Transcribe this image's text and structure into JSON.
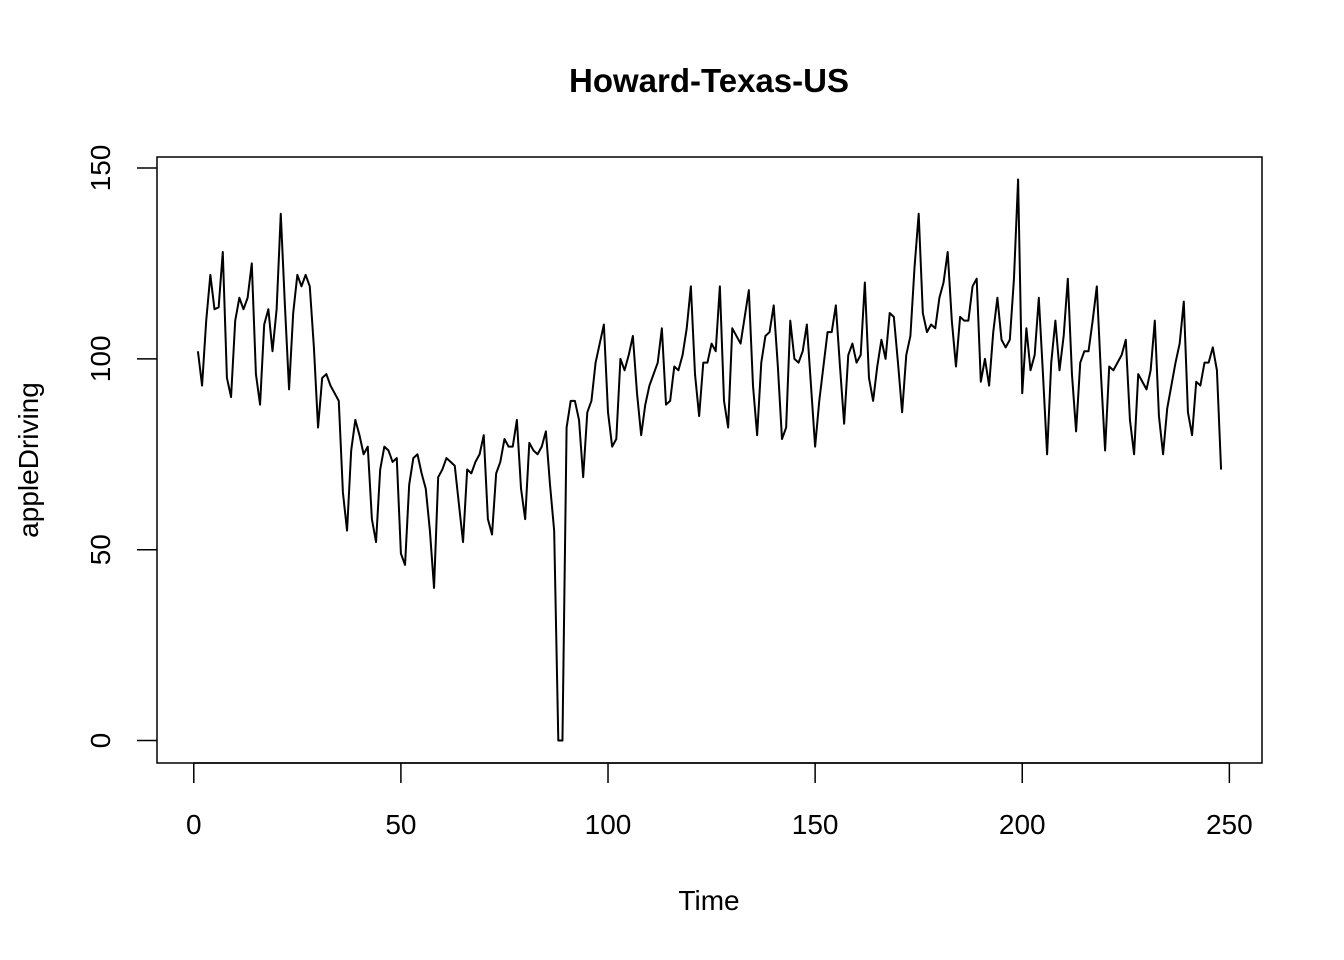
{
  "chart_data": {
    "type": "line",
    "title": "Howard-Texas-US",
    "x_label": "Time",
    "y_label": "appleDriving",
    "color": "#000000",
    "x": [
      1,
      2,
      3,
      4,
      5,
      6,
      7,
      8,
      9,
      10,
      11,
      12,
      13,
      14,
      15,
      16,
      17,
      18,
      19,
      20,
      21,
      22,
      23,
      24,
      25,
      26,
      27,
      28,
      29,
      30,
      31,
      32,
      33,
      34,
      35,
      36,
      37,
      38,
      39,
      40,
      41,
      42,
      43,
      44,
      45,
      46,
      47,
      48,
      49,
      50,
      51,
      52,
      53,
      54,
      55,
      56,
      57,
      58,
      59,
      60,
      61,
      62,
      63,
      64,
      65,
      66,
      67,
      68,
      69,
      70,
      71,
      72,
      73,
      74,
      75,
      76,
      77,
      78,
      79,
      80,
      81,
      82,
      83,
      84,
      85,
      86,
      87,
      88,
      89,
      90,
      91,
      92,
      93,
      94,
      95,
      96,
      97,
      98,
      99,
      100,
      101,
      102,
      103,
      104,
      105,
      106,
      107,
      108,
      109,
      110,
      111,
      112,
      113,
      114,
      115,
      116,
      117,
      118,
      119,
      120,
      121,
      122,
      123,
      124,
      125,
      126,
      127,
      128,
      129,
      130,
      131,
      132,
      133,
      134,
      135,
      136,
      137,
      138,
      139,
      140,
      141,
      142,
      143,
      144,
      145,
      146,
      147,
      148,
      149,
      150,
      151,
      152,
      153,
      154,
      155,
      156,
      157,
      158,
      159,
      160,
      161,
      162,
      163,
      164,
      165,
      166,
      167,
      168,
      169,
      170,
      171,
      172,
      173,
      174,
      175,
      176,
      177,
      178,
      179,
      180,
      181,
      182,
      183,
      184,
      185,
      186,
      187,
      188,
      189,
      190,
      191,
      192,
      193,
      194,
      195,
      196,
      197,
      198,
      199,
      200,
      201,
      202,
      203,
      204,
      205,
      206,
      207,
      208,
      209,
      210,
      211,
      212,
      213,
      214,
      215,
      216,
      217,
      218,
      219,
      220,
      221,
      222,
      223,
      224,
      225,
      226,
      227,
      228,
      229,
      230,
      231,
      232,
      233,
      234,
      235,
      236,
      237,
      238,
      239,
      240,
      241,
      242,
      243,
      244,
      245,
      246,
      247,
      248
    ],
    "values": [
      102,
      93,
      110,
      122,
      113,
      113.5,
      128,
      95,
      90,
      110,
      116,
      113,
      116,
      125,
      96,
      88,
      109,
      113,
      102,
      113,
      138,
      114,
      92,
      112,
      122,
      119,
      122,
      119,
      103,
      82,
      95,
      96,
      93,
      91,
      89,
      65,
      55,
      76,
      84,
      80,
      75,
      77,
      58,
      52,
      71,
      77,
      76,
      73,
      74,
      49,
      46,
      67,
      74,
      75,
      70,
      66,
      55,
      40,
      69,
      71,
      74,
      73,
      72,
      62,
      52,
      71,
      70,
      73,
      75,
      80,
      58,
      54,
      70,
      73,
      79,
      77,
      77,
      84,
      66,
      58,
      78,
      76,
      75,
      77,
      81,
      67,
      55,
      0,
      0,
      82,
      89,
      89,
      84,
      69,
      86,
      89,
      99,
      104,
      109,
      86,
      77,
      79,
      100,
      97,
      101,
      106,
      91,
      80,
      88,
      93,
      96,
      99,
      108,
      88,
      89,
      98,
      97,
      101,
      108,
      119,
      96,
      85,
      99,
      99,
      104,
      102,
      119,
      89,
      82,
      108,
      106,
      104,
      111,
      118,
      93,
      80,
      99,
      106,
      107,
      114,
      98,
      79,
      82,
      110,
      100,
      99,
      102,
      109,
      93,
      77,
      89,
      98,
      107,
      107,
      114,
      98,
      83,
      101,
      104,
      99,
      101,
      120,
      95,
      89,
      98,
      105,
      100,
      112,
      111,
      99,
      86,
      101,
      106,
      124,
      138,
      112,
      107,
      109,
      108,
      116,
      120,
      128,
      110,
      98,
      111,
      110,
      110,
      119,
      121,
      94,
      100,
      93,
      107,
      116,
      105,
      103,
      105,
      121,
      147,
      91,
      108,
      97,
      101,
      116,
      96,
      75,
      99,
      110,
      97,
      106,
      121,
      96,
      81,
      99,
      102,
      102,
      110,
      119,
      96,
      76,
      98,
      97,
      99,
      101,
      105,
      84,
      75,
      96,
      94,
      92,
      97,
      110,
      85,
      75,
      87,
      93,
      99,
      104,
      115,
      86,
      80,
      94,
      93,
      99,
      99,
      103,
      97,
      71
    ],
    "xlim": [
      -8.88,
      257.88
    ],
    "ylim": [
      -5.88,
      152.88
    ],
    "xticks": [
      0,
      50,
      100,
      150,
      200,
      250
    ],
    "yticks": [
      0,
      50,
      100,
      150
    ]
  }
}
